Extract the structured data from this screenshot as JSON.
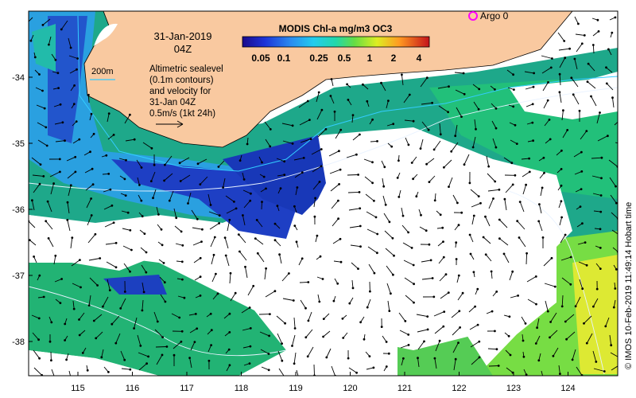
{
  "map": {
    "date_line": "31-Jan-2019",
    "time_line": "04Z",
    "contour_label": "200m",
    "description_lines": [
      "Altimetric sealevel",
      "(0.1m contours)",
      "and velocity for",
      "31-Jan 04Z"
    ],
    "scale_label": "0.5m/s (1kt 24h)",
    "colorbar_title": "MODIS Chl-a mg/m3 OC3",
    "colorbar_ticks": [
      "0.05",
      "0.1",
      "0.25",
      "0.5",
      "1",
      "2",
      "4"
    ],
    "argo_label": "Argo 0",
    "credit": "© IMOS 10-Feb-2019 11:49:14 Hobart time",
    "lon_ticks": [
      "115",
      "116",
      "117",
      "118",
      "119",
      "120",
      "121",
      "122",
      "123",
      "124"
    ],
    "lat_ticks": [
      "-34",
      "-35",
      "-36",
      "-37",
      "-38"
    ],
    "colors": {
      "land": "#f9c9a0",
      "argo_marker": "#ff00ff",
      "contour_200m": "#33ccff",
      "chl_low": "#1a33cc",
      "chl_mid": "#11bb99",
      "chl_high": "#eeee22"
    }
  }
}
